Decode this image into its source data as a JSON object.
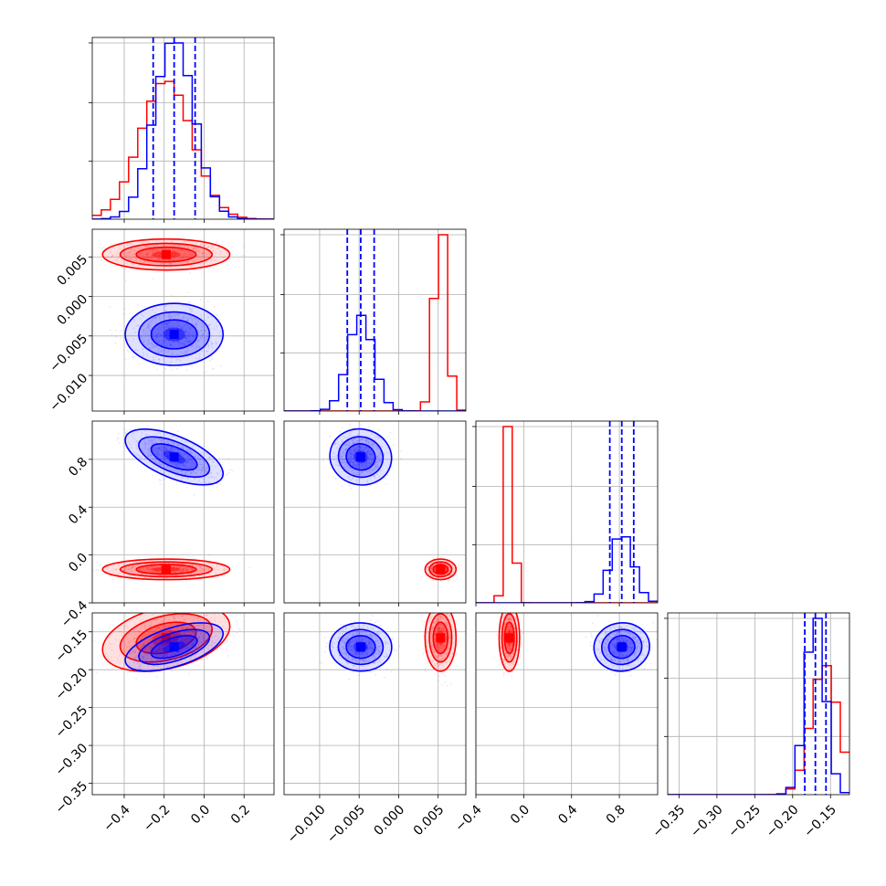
{
  "chart_data": {
    "type": "corner",
    "grid": true,
    "colors": {
      "red": "#ff0000",
      "blue": "#0000ff"
    },
    "parameters": [
      {
        "range": [
          -0.56,
          0.35
        ],
        "ticks": [
          -0.4,
          -0.2,
          0.0,
          0.2
        ],
        "tick_labels": [
          "−0.4",
          "−0.2",
          "0.0",
          "0.2"
        ]
      },
      {
        "range": [
          -0.0145,
          0.0085
        ],
        "ticks": [
          -0.01,
          -0.005,
          0.0,
          0.005
        ],
        "tick_labels": [
          "−0.010",
          "−0.005",
          "0.000",
          "0.005"
        ]
      },
      {
        "range": [
          -0.4,
          1.12
        ],
        "ticks": [
          -0.4,
          0.0,
          0.4,
          0.8
        ],
        "tick_labels": [
          "−0.4",
          "0.0",
          "0.4",
          "0.8"
        ]
      },
      {
        "range": [
          -0.365,
          -0.125
        ],
        "ticks": [
          -0.35,
          -0.3,
          -0.25,
          -0.2,
          -0.15
        ],
        "tick_labels": [
          "−0.35",
          "−0.30",
          "−0.25",
          "−0.20",
          "−0.15"
        ]
      }
    ],
    "series": [
      {
        "color": "#ff0000",
        "means": [
          -0.19,
          0.0053,
          -0.12,
          -0.158
        ],
        "sds": [
          0.13,
          0.0008,
          0.035,
          0.018
        ],
        "corr": [
          [
            1,
            0,
            0,
            0.35
          ],
          [
            0,
            1,
            0,
            0
          ],
          [
            0,
            0,
            1,
            0
          ],
          [
            0.35,
            0,
            0,
            1
          ]
        ],
        "quantile_lines": []
      },
      {
        "color": "#0000ff",
        "means": [
          -0.15,
          -0.0048,
          0.82,
          -0.17
        ],
        "sds": [
          0.1,
          0.0016,
          0.095,
          0.013
        ],
        "corr": [
          [
            1,
            0,
            -0.6,
            0.55
          ],
          [
            0,
            1,
            0,
            0
          ],
          [
            -0.6,
            0,
            1,
            0
          ],
          [
            0.55,
            0,
            0,
            1
          ]
        ],
        "quantile_lines": [
          [
            -0.255,
            -0.15,
            -0.045
          ],
          [
            -0.0065,
            -0.0048,
            -0.0031
          ],
          [
            0.72,
            0.82,
            0.92
          ],
          [
            -0.184,
            -0.17,
            -0.156
          ]
        ]
      }
    ]
  }
}
